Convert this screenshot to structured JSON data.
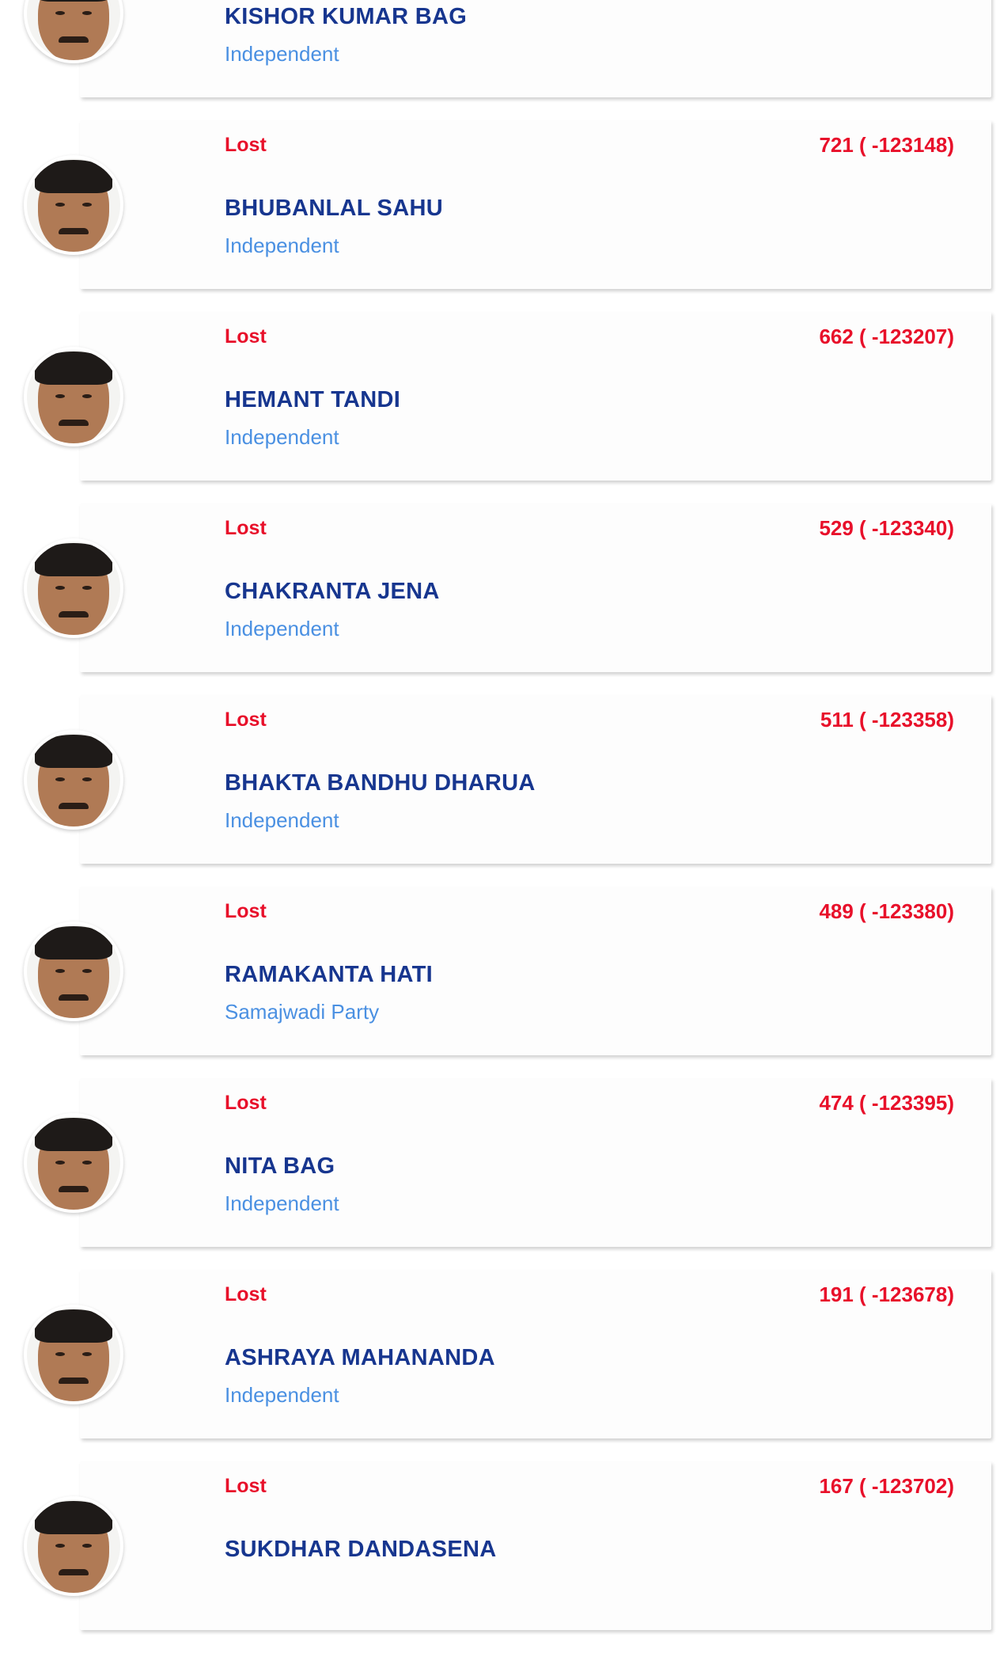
{
  "candidates": [
    {
      "status": "",
      "votes": "",
      "name": "KISHOR KUMAR BAG",
      "party": "Independent"
    },
    {
      "status": "Lost",
      "votes": "721 ( -123148)",
      "name": "BHUBANLAL SAHU",
      "party": "Independent"
    },
    {
      "status": "Lost",
      "votes": "662 ( -123207)",
      "name": "HEMANT TANDI",
      "party": "Independent"
    },
    {
      "status": "Lost",
      "votes": "529 ( -123340)",
      "name": "CHAKRANTA JENA",
      "party": "Independent"
    },
    {
      "status": "Lost",
      "votes": "511 ( -123358)",
      "name": "BHAKTA BANDHU DHARUA",
      "party": "Independent"
    },
    {
      "status": "Lost",
      "votes": "489 ( -123380)",
      "name": "RAMAKANTA HATI",
      "party": "Samajwadi Party"
    },
    {
      "status": "Lost",
      "votes": "474 ( -123395)",
      "name": "NITA BAG",
      "party": "Independent"
    },
    {
      "status": "Lost",
      "votes": "191 ( -123678)",
      "name": "ASHRAYA MAHANANDA",
      "party": "Independent"
    },
    {
      "status": "Lost",
      "votes": "167 ( -123702)",
      "name": "SUKDHAR DANDASENA",
      "party": ""
    }
  ],
  "colors": {
    "status": "#e8102a",
    "name": "#17368f",
    "party": "#4a90e2"
  }
}
